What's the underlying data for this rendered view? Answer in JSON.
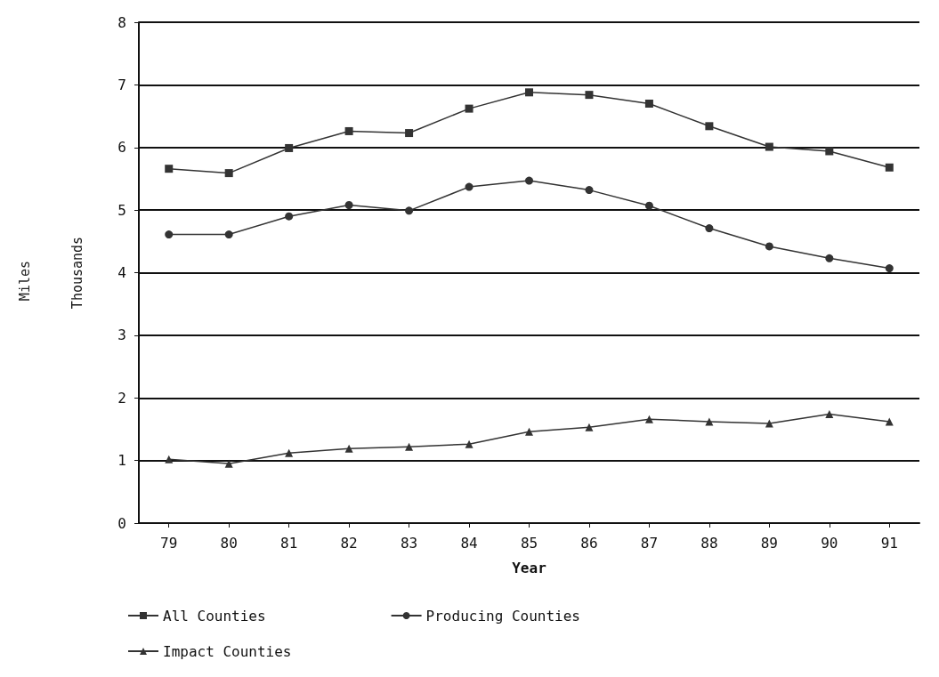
{
  "chart_data": {
    "type": "line",
    "xlabel": "Year",
    "ylabel": "Thousands",
    "annotations": [
      "Miles"
    ],
    "categories": [
      "79",
      "80",
      "81",
      "82",
      "83",
      "84",
      "85",
      "86",
      "87",
      "88",
      "89",
      "90",
      "91"
    ],
    "ylim": [
      0,
      8
    ],
    "yticks": [
      0,
      1,
      2,
      3,
      4,
      5,
      6,
      7,
      8
    ],
    "grid": "y",
    "legend": "bottom left",
    "line_style": "solid",
    "series": [
      {
        "name": "All Counties",
        "color": "#333333",
        "marker": "square",
        "values": [
          5.66,
          5.59,
          5.99,
          6.26,
          6.23,
          6.62,
          6.88,
          6.84,
          6.7,
          6.34,
          6.01,
          5.94,
          5.68
        ]
      },
      {
        "name": "Producing Counties",
        "color": "#333333",
        "marker": "circle",
        "values": [
          4.61,
          4.61,
          4.9,
          5.08,
          4.99,
          5.37,
          5.47,
          5.32,
          5.07,
          4.71,
          4.42,
          4.23,
          4.07
        ]
      },
      {
        "name": "Impact Counties",
        "color": "#333333",
        "marker": "triangle",
        "values": [
          1.02,
          0.95,
          1.12,
          1.19,
          1.22,
          1.26,
          1.46,
          1.53,
          1.66,
          1.62,
          1.59,
          1.74,
          1.62
        ]
      }
    ]
  }
}
